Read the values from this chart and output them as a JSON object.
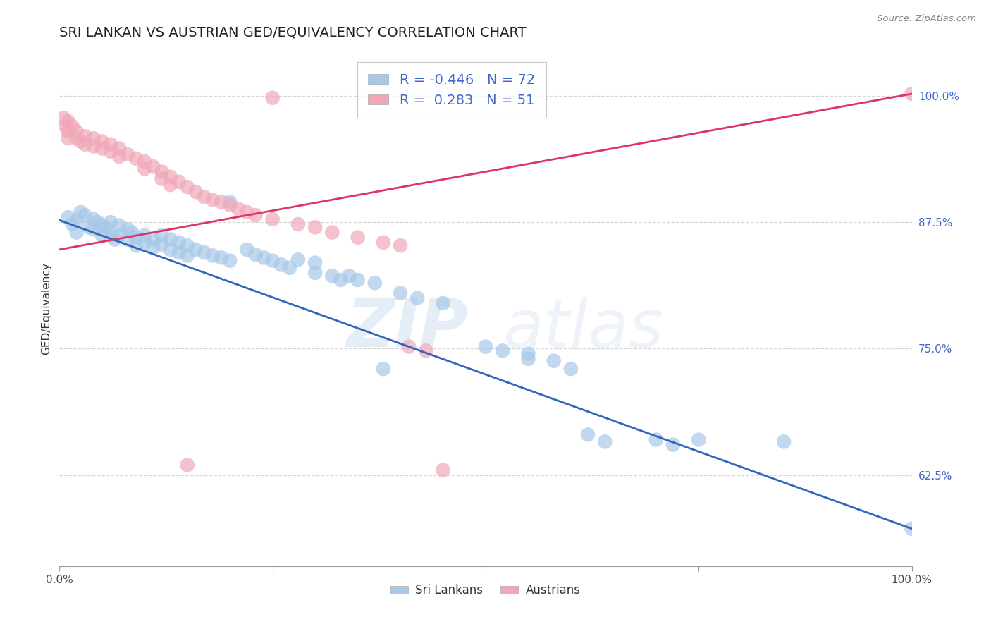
{
  "title": "SRI LANKAN VS AUSTRIAN GED/EQUIVALENCY CORRELATION CHART",
  "source": "Source: ZipAtlas.com",
  "ylabel": "GED/Equivalency",
  "yticks": [
    0.625,
    0.75,
    0.875,
    1.0
  ],
  "ytick_labels": [
    "62.5%",
    "75.0%",
    "87.5%",
    "100.0%"
  ],
  "xlim": [
    0.0,
    1.0
  ],
  "ylim": [
    0.535,
    1.045
  ],
  "legend_r_blue": "-0.446",
  "legend_n_blue": "72",
  "legend_r_pink": "0.283",
  "legend_n_pink": "51",
  "legend_label_blue": "Sri Lankans",
  "legend_label_pink": "Austrians",
  "blue_color": "#a8c8e8",
  "pink_color": "#f0a8b8",
  "blue_line_color": "#3366bb",
  "pink_line_color": "#dd3366",
  "blue_scatter": [
    [
      0.01,
      0.88
    ],
    [
      0.015,
      0.873
    ],
    [
      0.02,
      0.877
    ],
    [
      0.025,
      0.885
    ],
    [
      0.02,
      0.865
    ],
    [
      0.03,
      0.882
    ],
    [
      0.035,
      0.87
    ],
    [
      0.04,
      0.878
    ],
    [
      0.04,
      0.868
    ],
    [
      0.045,
      0.875
    ],
    [
      0.05,
      0.872
    ],
    [
      0.05,
      0.862
    ],
    [
      0.055,
      0.869
    ],
    [
      0.06,
      0.875
    ],
    [
      0.06,
      0.862
    ],
    [
      0.065,
      0.858
    ],
    [
      0.07,
      0.872
    ],
    [
      0.07,
      0.862
    ],
    [
      0.08,
      0.868
    ],
    [
      0.08,
      0.858
    ],
    [
      0.085,
      0.865
    ],
    [
      0.09,
      0.86
    ],
    [
      0.09,
      0.852
    ],
    [
      0.1,
      0.862
    ],
    [
      0.1,
      0.855
    ],
    [
      0.11,
      0.858
    ],
    [
      0.11,
      0.85
    ],
    [
      0.12,
      0.862
    ],
    [
      0.12,
      0.853
    ],
    [
      0.13,
      0.858
    ],
    [
      0.13,
      0.848
    ],
    [
      0.14,
      0.855
    ],
    [
      0.14,
      0.845
    ],
    [
      0.15,
      0.852
    ],
    [
      0.15,
      0.842
    ],
    [
      0.16,
      0.848
    ],
    [
      0.17,
      0.845
    ],
    [
      0.18,
      0.842
    ],
    [
      0.19,
      0.84
    ],
    [
      0.2,
      0.837
    ],
    [
      0.2,
      0.895
    ],
    [
      0.22,
      0.848
    ],
    [
      0.23,
      0.843
    ],
    [
      0.24,
      0.84
    ],
    [
      0.25,
      0.837
    ],
    [
      0.26,
      0.833
    ],
    [
      0.27,
      0.83
    ],
    [
      0.28,
      0.838
    ],
    [
      0.3,
      0.835
    ],
    [
      0.3,
      0.825
    ],
    [
      0.32,
      0.822
    ],
    [
      0.33,
      0.818
    ],
    [
      0.34,
      0.822
    ],
    [
      0.35,
      0.818
    ],
    [
      0.37,
      0.815
    ],
    [
      0.4,
      0.805
    ],
    [
      0.42,
      0.8
    ],
    [
      0.45,
      0.795
    ],
    [
      0.5,
      0.752
    ],
    [
      0.52,
      0.748
    ],
    [
      0.55,
      0.745
    ],
    [
      0.55,
      0.74
    ],
    [
      0.58,
      0.738
    ],
    [
      0.6,
      0.73
    ],
    [
      0.62,
      0.665
    ],
    [
      0.64,
      0.658
    ],
    [
      0.7,
      0.66
    ],
    [
      0.72,
      0.655
    ],
    [
      0.75,
      0.66
    ],
    [
      0.85,
      0.658
    ],
    [
      0.38,
      0.73
    ],
    [
      1.0,
      0.572
    ]
  ],
  "pink_scatter": [
    [
      0.005,
      0.978
    ],
    [
      0.007,
      0.97
    ],
    [
      0.01,
      0.975
    ],
    [
      0.01,
      0.965
    ],
    [
      0.01,
      0.958
    ],
    [
      0.015,
      0.97
    ],
    [
      0.02,
      0.965
    ],
    [
      0.02,
      0.958
    ],
    [
      0.025,
      0.955
    ],
    [
      0.03,
      0.96
    ],
    [
      0.03,
      0.952
    ],
    [
      0.04,
      0.958
    ],
    [
      0.04,
      0.95
    ],
    [
      0.05,
      0.955
    ],
    [
      0.05,
      0.948
    ],
    [
      0.06,
      0.952
    ],
    [
      0.06,
      0.945
    ],
    [
      0.07,
      0.948
    ],
    [
      0.07,
      0.94
    ],
    [
      0.08,
      0.942
    ],
    [
      0.09,
      0.938
    ],
    [
      0.1,
      0.935
    ],
    [
      0.1,
      0.928
    ],
    [
      0.11,
      0.93
    ],
    [
      0.12,
      0.925
    ],
    [
      0.12,
      0.918
    ],
    [
      0.13,
      0.92
    ],
    [
      0.13,
      0.912
    ],
    [
      0.14,
      0.915
    ],
    [
      0.15,
      0.91
    ],
    [
      0.16,
      0.905
    ],
    [
      0.17,
      0.9
    ],
    [
      0.18,
      0.897
    ],
    [
      0.19,
      0.895
    ],
    [
      0.2,
      0.892
    ],
    [
      0.21,
      0.888
    ],
    [
      0.22,
      0.885
    ],
    [
      0.23,
      0.882
    ],
    [
      0.25,
      0.878
    ],
    [
      0.25,
      0.998
    ],
    [
      0.28,
      0.873
    ],
    [
      0.3,
      0.87
    ],
    [
      0.32,
      0.865
    ],
    [
      0.35,
      0.86
    ],
    [
      0.38,
      0.855
    ],
    [
      0.4,
      0.852
    ],
    [
      0.41,
      0.752
    ],
    [
      0.43,
      0.748
    ],
    [
      0.45,
      0.63
    ],
    [
      0.15,
      0.635
    ],
    [
      1.0,
      1.002
    ]
  ],
  "blue_line": [
    [
      0.0,
      0.877
    ],
    [
      1.0,
      0.572
    ]
  ],
  "pink_line": [
    [
      0.0,
      0.848
    ],
    [
      1.0,
      1.002
    ]
  ],
  "watermark_zip": "ZIP",
  "watermark_atlas": "atlas",
  "background_color": "#ffffff",
  "grid_color": "#cccccc",
  "title_fontsize": 14,
  "axis_fontsize": 11,
  "tick_fontsize": 11
}
